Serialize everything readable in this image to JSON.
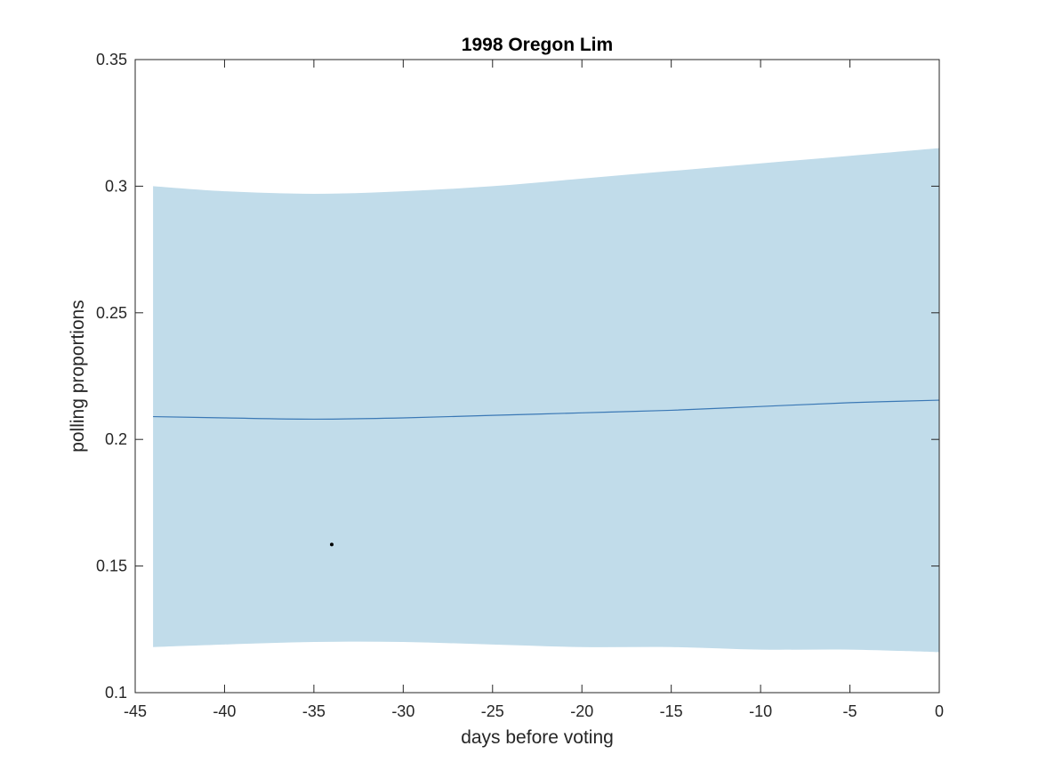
{
  "chart_data": {
    "type": "line",
    "title": "1998 Oregon Lim",
    "xlabel": "days before voting",
    "ylabel": "polling proportions",
    "xlim": [
      -45,
      0
    ],
    "ylim": [
      0.1,
      0.35
    ],
    "xticks": [
      -45,
      -40,
      -35,
      -30,
      -25,
      -20,
      -15,
      -10,
      -5,
      0
    ],
    "xtick_labels": [
      "-45",
      "-40",
      "-35",
      "-30",
      "-25",
      "-20",
      "-15",
      "-10",
      "-5",
      "0"
    ],
    "yticks": [
      0.1,
      0.15,
      0.2,
      0.25,
      0.3,
      0.35
    ],
    "ytick_labels": [
      "0.1",
      "0.15",
      "0.2",
      "0.25",
      "0.3",
      "0.35"
    ],
    "grid": false,
    "band": {
      "x": [
        -44,
        -40,
        -35,
        -30,
        -25,
        -20,
        -15,
        -10,
        -5,
        0
      ],
      "upper": [
        0.3,
        0.298,
        0.297,
        0.298,
        0.3,
        0.303,
        0.306,
        0.309,
        0.312,
        0.315
      ],
      "lower": [
        0.118,
        0.119,
        0.12,
        0.12,
        0.119,
        0.118,
        0.118,
        0.117,
        0.117,
        0.116
      ],
      "color": "#c1dcea"
    },
    "series": [
      {
        "x": [
          -44,
          -40,
          -35,
          -30,
          -25,
          -20,
          -15,
          -10,
          -5,
          0
        ],
        "y": [
          0.209,
          0.2085,
          0.208,
          0.2085,
          0.2095,
          0.2105,
          0.2115,
          0.213,
          0.2145,
          0.2155
        ],
        "color": "#3a78b5"
      }
    ],
    "points": [
      {
        "x": -34,
        "y": 0.1585,
        "color": "#000000"
      }
    ]
  }
}
